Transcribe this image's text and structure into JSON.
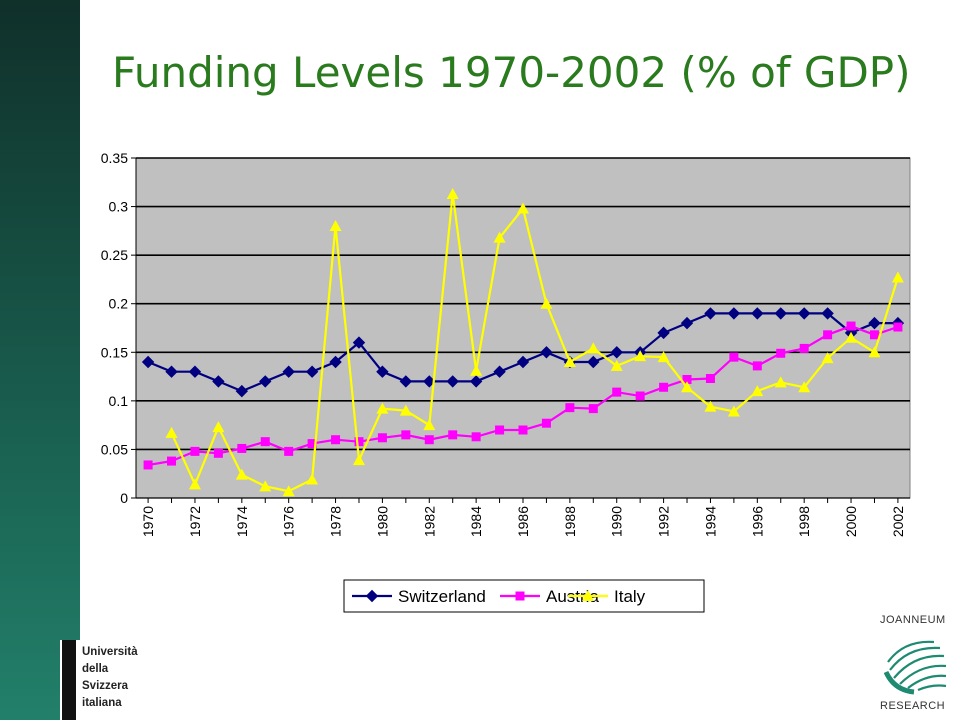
{
  "slide": {
    "title": "Funding Levels 1970-2002 (% of GDP)"
  },
  "logos": {
    "usi_lines": [
      "Università",
      "della",
      "Svizzera",
      "italiana"
    ],
    "joanneum_top": "JOANNEUM",
    "joanneum_bottom": "RESEARCH"
  },
  "chart_data": {
    "type": "line",
    "x": [
      1970,
      1971,
      1972,
      1973,
      1974,
      1975,
      1976,
      1977,
      1978,
      1979,
      1980,
      1981,
      1982,
      1983,
      1984,
      1985,
      1986,
      1987,
      1988,
      1989,
      1990,
      1991,
      1992,
      1993,
      1994,
      1995,
      1996,
      1997,
      1998,
      1999,
      2000,
      2001,
      2002
    ],
    "x_tick_labels": [
      "1970",
      "1972",
      "1974",
      "1976",
      "1978",
      "1980",
      "1982",
      "1984",
      "1986",
      "1988",
      "1990",
      "1992",
      "1994",
      "1996",
      "1998",
      "2000",
      "2002"
    ],
    "y_tick_labels": [
      "0",
      "0.05",
      "0.1",
      "0.15",
      "0.2",
      "0.25",
      "0.3",
      "0.35"
    ],
    "ylim": [
      0,
      0.35
    ],
    "xlabel": "",
    "ylabel": "",
    "grid": true,
    "plot_background": "#c0c0c0",
    "legend_position": "bottom",
    "series": [
      {
        "name": "Switzerland",
        "color": "#000080",
        "marker": "diamond",
        "values": [
          0.14,
          0.13,
          0.13,
          0.12,
          0.11,
          0.12,
          0.13,
          0.13,
          0.14,
          0.16,
          0.13,
          0.12,
          0.12,
          0.12,
          0.12,
          0.13,
          0.14,
          0.15,
          0.14,
          0.14,
          0.15,
          0.15,
          0.17,
          0.18,
          0.19,
          0.19,
          0.19,
          0.19,
          0.19,
          0.19,
          0.17,
          0.18,
          0.18
        ]
      },
      {
        "name": "Austria",
        "color": "#ff00ff",
        "marker": "square",
        "values": [
          0.034,
          0.038,
          0.048,
          0.046,
          0.051,
          0.058,
          0.048,
          0.056,
          0.06,
          0.058,
          0.062,
          0.065,
          0.06,
          0.065,
          0.063,
          0.07,
          0.07,
          0.077,
          0.093,
          0.092,
          0.109,
          0.105,
          0.114,
          0.122,
          0.123,
          0.145,
          0.136,
          0.149,
          0.154,
          0.168,
          0.177,
          0.168,
          0.176
        ]
      },
      {
        "name": "Italy",
        "color": "#ffff00",
        "marker": "triangle",
        "values": [
          null,
          0.067,
          0.014,
          0.073,
          0.024,
          0.012,
          0.007,
          0.019,
          0.28,
          0.039,
          0.092,
          0.09,
          0.075,
          0.313,
          0.131,
          0.268,
          0.298,
          0.2,
          0.14,
          0.154,
          0.136,
          0.146,
          0.145,
          0.114,
          0.094,
          0.089,
          0.11,
          0.119,
          0.114,
          0.144,
          0.165,
          0.15,
          0.227
        ]
      }
    ]
  }
}
